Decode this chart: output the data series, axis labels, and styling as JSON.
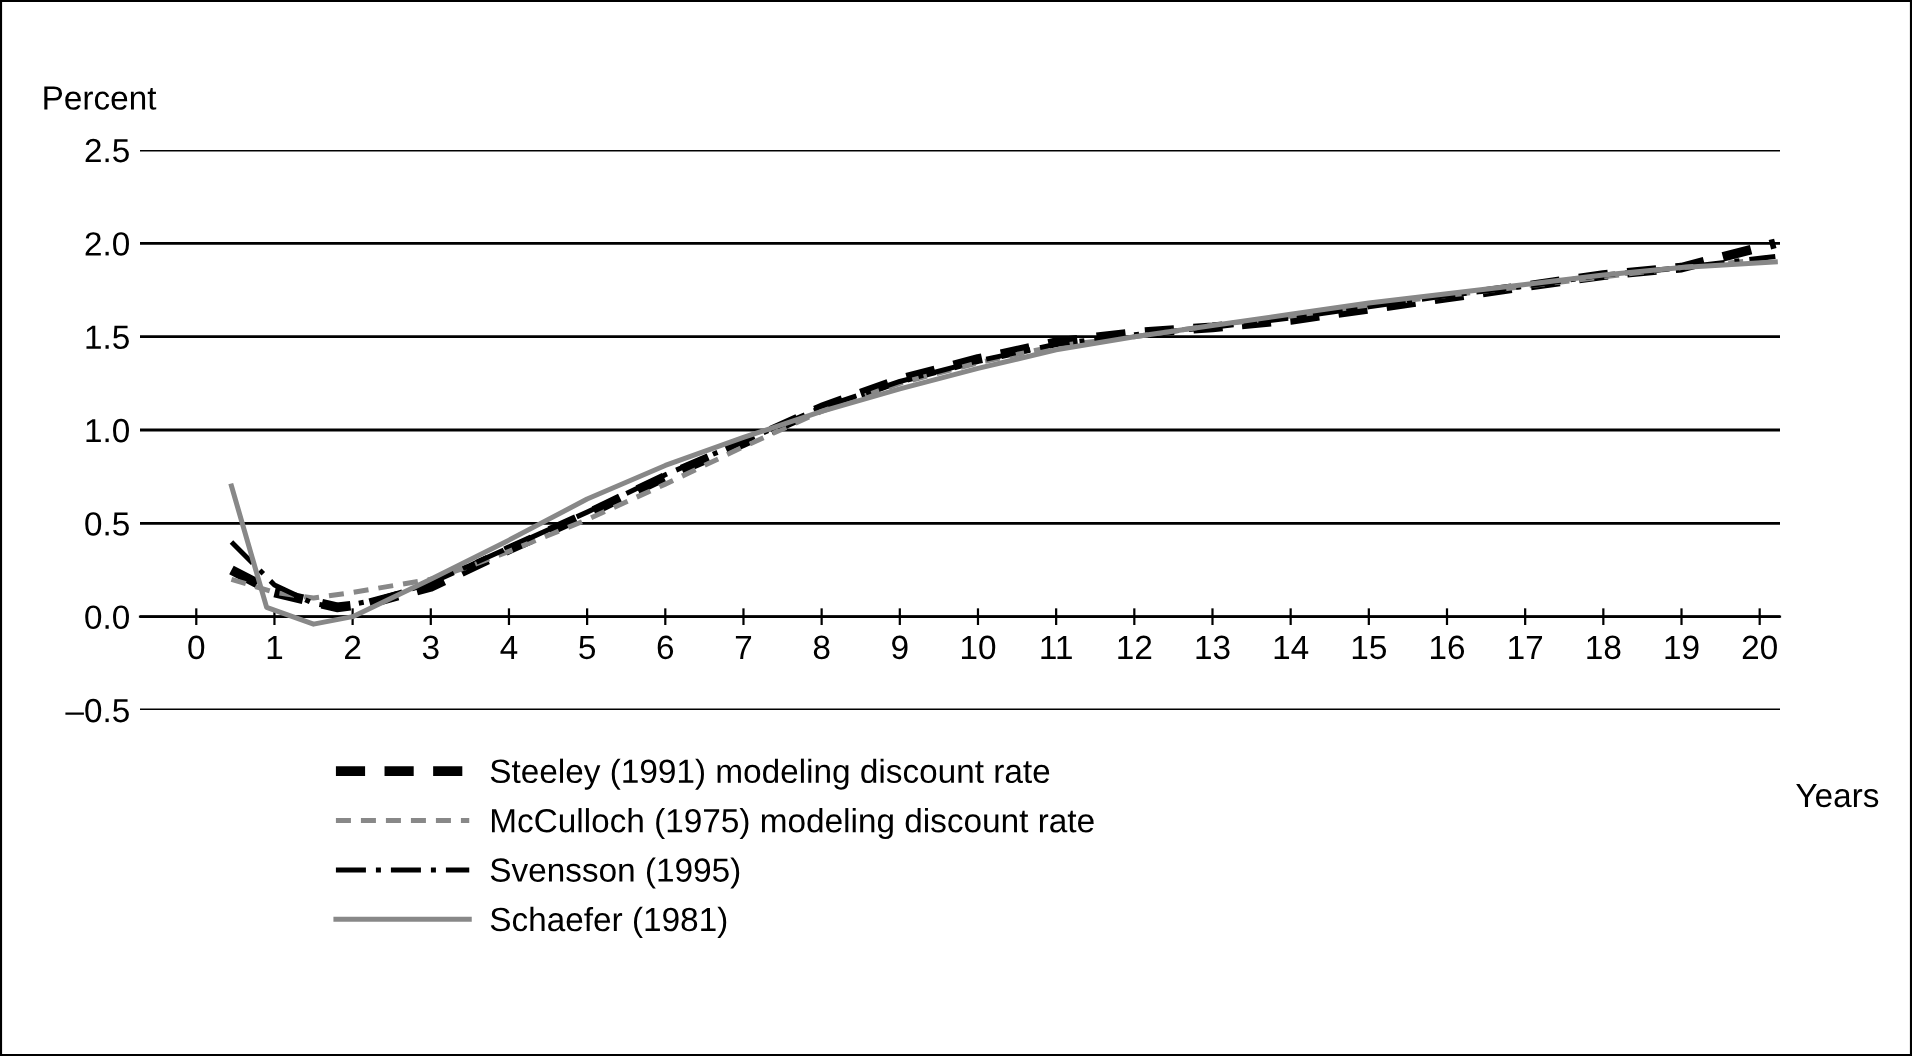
{
  "chart_data": {
    "type": "line",
    "xlabel": "Years",
    "ylabel": "Percent",
    "xlim": [
      -0.72,
      20.26
    ],
    "ylim": [
      -0.5,
      2.5
    ],
    "xticks": [
      0,
      1,
      2,
      3,
      4,
      5,
      6,
      7,
      8,
      9,
      10,
      11,
      12,
      13,
      14,
      15,
      16,
      17,
      18,
      19,
      20
    ],
    "yticks": [
      {
        "value": -0.5,
        "label": "–0.5"
      },
      {
        "value": 0,
        "label": "0.0"
      },
      {
        "value": 0.5,
        "label": "0.5"
      },
      {
        "value": 1,
        "label": "1.0"
      },
      {
        "value": 1.5,
        "label": "1.5"
      },
      {
        "value": 2,
        "label": "2.0"
      },
      {
        "value": 2.5,
        "label": "2.5"
      }
    ],
    "grid": "y",
    "legend": "bottom",
    "series": [
      {
        "name": "Steeley (1991) modeling discount rate",
        "color": "#000000",
        "line_style": "dashed",
        "x": [
          0.45,
          1,
          1.5,
          1.8,
          2.2,
          3,
          4,
          5,
          6,
          7,
          8,
          9,
          10,
          11,
          12,
          13,
          14,
          15,
          16,
          17,
          18,
          19,
          20.2
        ],
        "values": [
          0.25,
          0.13,
          0.08,
          0.05,
          0.07,
          0.16,
          0.36,
          0.55,
          0.75,
          0.93,
          1.12,
          1.27,
          1.38,
          1.47,
          1.52,
          1.55,
          1.59,
          1.65,
          1.71,
          1.77,
          1.83,
          1.87,
          2.0
        ]
      },
      {
        "name": "McCulloch (1975) modeling discount rate",
        "color": "#888888",
        "line_style": "dashed",
        "x": [
          0.45,
          1,
          1.5,
          2,
          3,
          3.5,
          4,
          5,
          6,
          7,
          8,
          9,
          10,
          11,
          12,
          13,
          14,
          15,
          16,
          17,
          18,
          19,
          20.2
        ],
        "values": [
          0.2,
          0.13,
          0.1,
          0.13,
          0.2,
          0.27,
          0.35,
          0.52,
          0.71,
          0.91,
          1.1,
          1.25,
          1.36,
          1.45,
          1.5,
          1.56,
          1.61,
          1.67,
          1.72,
          1.77,
          1.82,
          1.87,
          1.92
        ]
      },
      {
        "name": "Svensson (1995)",
        "color": "#000000",
        "line_style": "dashdot",
        "x": [
          0.45,
          1,
          1.5,
          1.8,
          2.3,
          3,
          4,
          5,
          6,
          7,
          8,
          9,
          10,
          11,
          12,
          13,
          14,
          15,
          16,
          17,
          18,
          19,
          20.2
        ],
        "values": [
          0.4,
          0.17,
          0.07,
          0.05,
          0.09,
          0.18,
          0.37,
          0.56,
          0.76,
          0.94,
          1.12,
          1.26,
          1.37,
          1.46,
          1.51,
          1.55,
          1.6,
          1.66,
          1.72,
          1.77,
          1.83,
          1.87,
          1.93
        ]
      },
      {
        "name": "Schaefer (1981)",
        "color": "#888888",
        "line_style": "solid",
        "x": [
          0.45,
          0.9,
          1.5,
          2,
          3,
          4,
          5,
          6,
          7,
          8,
          9,
          10,
          11,
          12,
          13,
          14,
          15,
          16,
          17,
          18,
          19,
          20.2
        ],
        "values": [
          0.7,
          0.05,
          -0.04,
          0.0,
          0.2,
          0.41,
          0.63,
          0.81,
          0.96,
          1.1,
          1.22,
          1.33,
          1.43,
          1.5,
          1.56,
          1.62,
          1.68,
          1.73,
          1.78,
          1.83,
          1.87,
          1.9
        ]
      }
    ]
  }
}
